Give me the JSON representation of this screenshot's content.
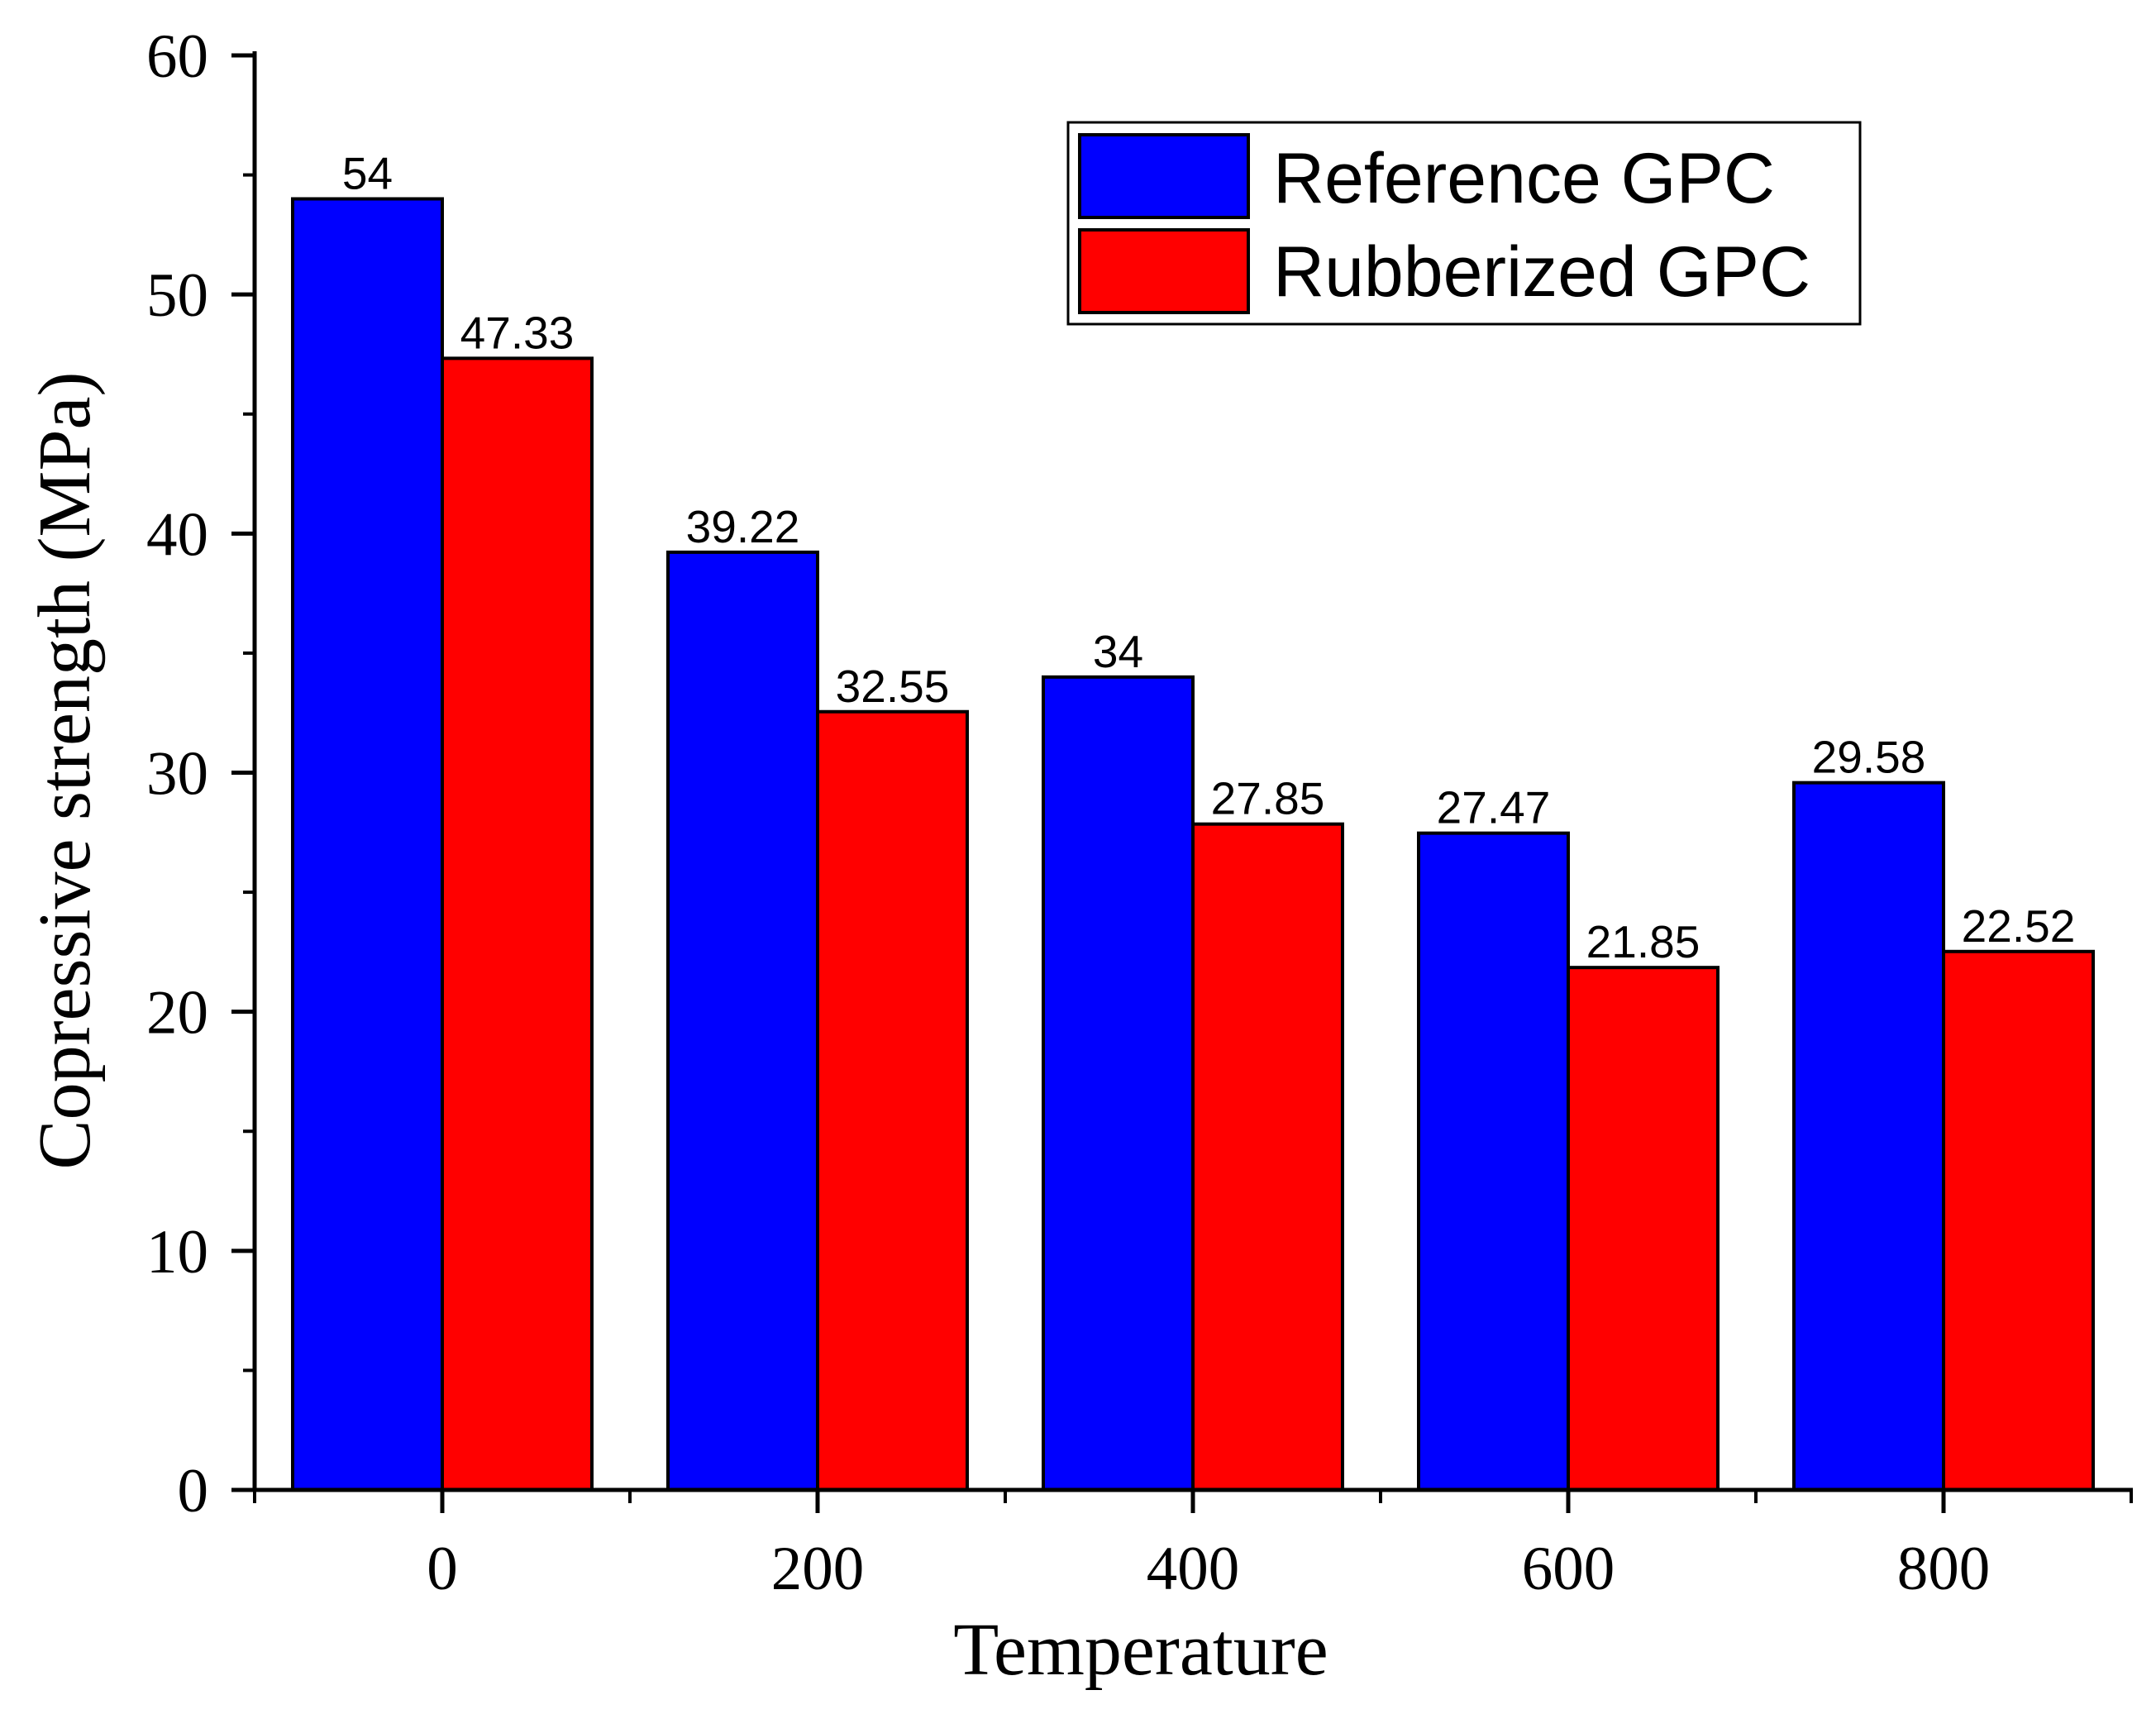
{
  "chart_data": {
    "type": "bar",
    "title": "",
    "xlabel": "Temperature",
    "ylabel": "Copressive strength (MPa)",
    "categories": [
      "0",
      "200",
      "400",
      "600",
      "800"
    ],
    "ylim": [
      0,
      60
    ],
    "yticks": [
      "0",
      "10",
      "20",
      "30",
      "40",
      "50",
      "60"
    ],
    "series": [
      {
        "name": "Reference GPC",
        "color": "#0000ff",
        "values": [
          54,
          39.22,
          34,
          27.47,
          29.58
        ],
        "labels": [
          "54",
          "39.22",
          "34",
          "27.47",
          "29.58"
        ]
      },
      {
        "name": "Rubberized GPC",
        "color": "#ff0000",
        "values": [
          47.33,
          32.55,
          27.85,
          21.85,
          22.52
        ],
        "labels": [
          "47.33",
          "32.55",
          "27.85",
          "21.85",
          "22.52"
        ]
      }
    ],
    "legend_position": "top-right",
    "grid": false
  }
}
